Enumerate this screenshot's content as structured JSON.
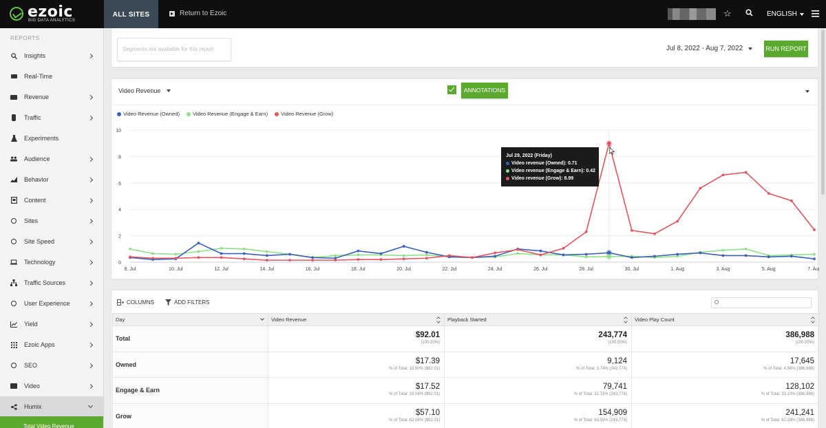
{
  "topbar": {
    "logo_word": "ezoic",
    "logo_sub": "BIG DATA ANALYTICS",
    "all_sites": "ALL SITES",
    "return_link": "Return to Ezoic",
    "language": "ENGLISH"
  },
  "sidebar": {
    "header": "REPORTS",
    "items": [
      {
        "label": "Insights",
        "icon": "search-icon",
        "has_chevron": true
      },
      {
        "label": "Real-Time",
        "icon": "camera-icon",
        "has_chevron": false
      },
      {
        "label": "Revenue",
        "icon": "money-icon",
        "has_chevron": true
      },
      {
        "label": "Traffic",
        "icon": "traffic-icon",
        "has_chevron": true
      },
      {
        "label": "Experiments",
        "icon": "flask-icon",
        "has_chevron": false
      },
      {
        "label": "Audience",
        "icon": "people-icon",
        "has_chevron": true
      },
      {
        "label": "Behavior",
        "icon": "chart-icon",
        "has_chevron": true
      },
      {
        "label": "Content",
        "icon": "document-icon",
        "has_chevron": true
      },
      {
        "label": "Sites",
        "icon": "globe-icon",
        "has_chevron": true
      },
      {
        "label": "Site Speed",
        "icon": "speedometer-icon",
        "has_chevron": true
      },
      {
        "label": "Technology",
        "icon": "laptop-icon",
        "has_chevron": true
      },
      {
        "label": "Traffic Sources",
        "icon": "sitemap-icon",
        "has_chevron": true
      },
      {
        "label": "User Experience",
        "icon": "smile-icon",
        "has_chevron": true
      },
      {
        "label": "Yield",
        "icon": "line-chart-icon",
        "has_chevron": true
      },
      {
        "label": "Ezoic Apps",
        "icon": "grid-icon",
        "has_chevron": true
      },
      {
        "label": "SEO",
        "icon": "globe-icon",
        "has_chevron": true
      },
      {
        "label": "Video",
        "icon": "film-icon",
        "has_chevron": true
      },
      {
        "label": "Humix",
        "icon": "share-icon",
        "has_chevron": true
      }
    ],
    "subnav_active": "Total Video Revenue"
  },
  "filters": {
    "segments_placeholder": "Segments not available for this report",
    "date_range": "Jul 8, 2022 - Aug 7, 2022",
    "run_report": "RUN REPORT"
  },
  "chart_panel": {
    "metric_select": "Video Revenue",
    "annotations": "ANNOTATIONS",
    "colors": {
      "owned": "#3b5fb4",
      "engage": "#8fe08a",
      "grow": "#e05560"
    }
  },
  "chart_data": {
    "type": "line",
    "title": "",
    "x": [
      "8. Jul",
      "9. Jul",
      "10. Jul",
      "11. Jul",
      "12. Jul",
      "13. Jul",
      "14. Jul",
      "15. Jul",
      "16. Jul",
      "17. Jul",
      "18. Jul",
      "19. Jul",
      "20. Jul",
      "21. Jul",
      "22. Jul",
      "23. Jul",
      "24. Jul",
      "25. Jul",
      "26. Jul",
      "27. Jul",
      "28. Jul",
      "29. Jul",
      "30. Jul",
      "31. Jul",
      "1. Aug",
      "2. Aug",
      "3. Aug",
      "4. Aug",
      "5. Aug",
      "6. Aug",
      "7. Aug"
    ],
    "xticks": [
      "8. Jul",
      "10. Jul",
      "12. Jul",
      "14. Jul",
      "16. Jul",
      "18. Jul",
      "20. Jul",
      "22. Jul",
      "24. Jul",
      "26. Jul",
      "28. Jul",
      "30. Jul",
      "1. Aug",
      "3. Aug",
      "5. Aug",
      "7. Aug"
    ],
    "yticks": [
      "0",
      "2",
      "4",
      "6",
      "8",
      "10"
    ],
    "ylim": [
      0,
      10
    ],
    "series": [
      {
        "name": "Video Revenue (Owned)",
        "color": "#3b5fb4",
        "values": [
          0.35,
          0.2,
          0.25,
          1.45,
          0.65,
          0.65,
          0.5,
          0.6,
          0.35,
          0.3,
          0.85,
          0.65,
          1.2,
          0.75,
          0.4,
          0.35,
          0.45,
          1.0,
          0.85,
          0.55,
          0.6,
          0.71,
          0.35,
          0.45,
          0.6,
          0.7,
          0.5,
          0.5,
          0.4,
          0.45,
          0.25
        ]
      },
      {
        "name": "Video Revenue (Engage & Earn)",
        "color": "#8fe08a",
        "values": [
          1.0,
          0.65,
          0.6,
          0.8,
          1.05,
          1.0,
          0.8,
          0.6,
          0.35,
          0.5,
          0.55,
          0.55,
          0.5,
          0.55,
          0.4,
          0.35,
          0.4,
          0.65,
          0.55,
          0.55,
          0.4,
          0.42,
          0.45,
          0.35,
          0.45,
          0.75,
          0.9,
          1.0,
          0.5,
          0.55,
          0.6
        ]
      },
      {
        "name": "Video Revenue (Grow)",
        "color": "#e05560",
        "values": [
          0.4,
          0.3,
          0.3,
          0.35,
          0.35,
          0.25,
          0.15,
          0.15,
          0.15,
          0.15,
          0.2,
          0.2,
          0.25,
          0.3,
          0.5,
          0.35,
          0.7,
          0.95,
          0.55,
          1.05,
          2.3,
          8.99,
          2.4,
          2.15,
          3.1,
          5.6,
          6.6,
          6.8,
          5.2,
          4.65,
          2.45
        ]
      }
    ],
    "tooltip": {
      "date": "Jul 29, 2022 (Friday)",
      "lines": [
        "Video revenue (Owned): 0.71",
        "Video revenue (Engage & Earn): 0.42",
        "Video revenue (Grow): 8.99"
      ]
    }
  },
  "table": {
    "columns_btn": "COLUMNS",
    "filters_btn": "ADD FILTERS",
    "headers": [
      "Day",
      "Video Revenue",
      "Playback Started",
      "Video Play Count"
    ],
    "rows": [
      {
        "label": "Total",
        "cells": [
          {
            "v": "$92.01",
            "s": "(100.00%)"
          },
          {
            "v": "243,774",
            "s": "(100.00%)"
          },
          {
            "v": "386,988",
            "s": "(100.00%)"
          }
        ]
      },
      {
        "label": "Owned",
        "cells": [
          {
            "v": "$17.39",
            "s": "% of Total: 18.90% ($92.01)"
          },
          {
            "v": "9,124",
            "s": "% of Total: 3.74% (243,774)"
          },
          {
            "v": "17,645",
            "s": "% of Total: 4.56% (386,988)"
          }
        ]
      },
      {
        "label": "Engage & Earn",
        "cells": [
          {
            "v": "$17.52",
            "s": "% of Total: 19.04% ($92.01)"
          },
          {
            "v": "79,741",
            "s": "% of Total: 32.71% (243,774)"
          },
          {
            "v": "128,102",
            "s": "% of Total: 33.10% (386,988)"
          }
        ]
      },
      {
        "label": "Grow",
        "cells": [
          {
            "v": "$57.10",
            "s": "% of Total: 62.06% ($92.01)"
          },
          {
            "v": "154,909",
            "s": "% of Total: 63.55% (243,774)"
          },
          {
            "v": "241,241",
            "s": "% of Total: 62.34% (386,988)"
          }
        ]
      }
    ]
  }
}
